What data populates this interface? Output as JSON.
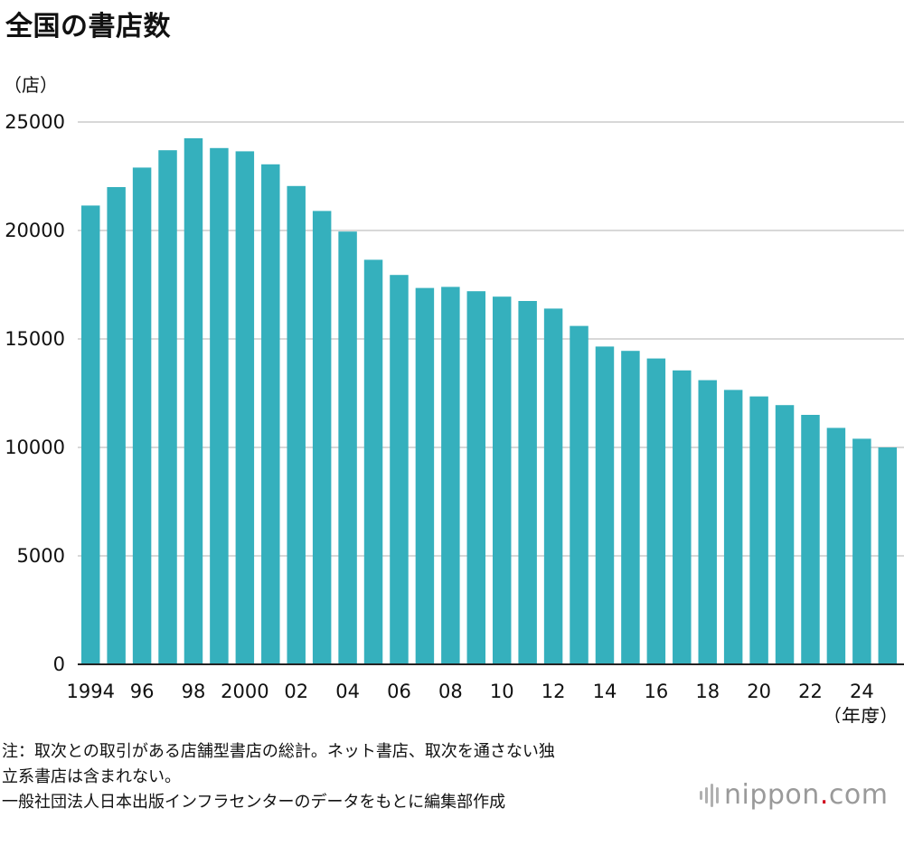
{
  "title": "全国の書店数",
  "unit_label": "（店）",
  "x_unit_label": "（年度）",
  "note_line1": "注：取次との取引がある店舗型書店の総計。ネット書店、取次を通さない独",
  "note_line2": "立系書店は含まれない。",
  "source": "一般社団法人日本出版インフラセンターのデータをもとに編集部作成",
  "logo": {
    "text_main": "nippon",
    "dot": ".",
    "text_tail": "com"
  },
  "colors": {
    "bar": "#35b0bd",
    "grid": "#cccccc",
    "axis": "#222222",
    "logo_dot": "#d0021b"
  },
  "chart_data": {
    "type": "bar",
    "x": [
      1994,
      1995,
      1996,
      1997,
      1998,
      1999,
      2000,
      2001,
      2002,
      2003,
      2004,
      2005,
      2006,
      2007,
      2008,
      2009,
      2010,
      2011,
      2012,
      2013,
      2014,
      2015,
      2016,
      2017,
      2018,
      2019,
      2020,
      2021,
      2022,
      2023,
      2024,
      2025
    ],
    "values": [
      21150,
      22000,
      22900,
      23700,
      24250,
      23800,
      23650,
      23050,
      22050,
      20900,
      19950,
      18650,
      17950,
      17350,
      17400,
      17200,
      16950,
      16750,
      16400,
      15600,
      14650,
      14450,
      14100,
      13550,
      13100,
      12650,
      12350,
      11950,
      11500,
      10900,
      10400,
      10000
    ],
    "x_tick_labels": [
      {
        "x": 1994,
        "label": "1994"
      },
      {
        "x": 1996,
        "label": "96"
      },
      {
        "x": 1998,
        "label": "98"
      },
      {
        "x": 2000,
        "label": "2000"
      },
      {
        "x": 2002,
        "label": "02"
      },
      {
        "x": 2004,
        "label": "04"
      },
      {
        "x": 2006,
        "label": "06"
      },
      {
        "x": 2008,
        "label": "08"
      },
      {
        "x": 2010,
        "label": "10"
      },
      {
        "x": 2012,
        "label": "12"
      },
      {
        "x": 2014,
        "label": "14"
      },
      {
        "x": 2016,
        "label": "16"
      },
      {
        "x": 2018,
        "label": "18"
      },
      {
        "x": 2020,
        "label": "20"
      },
      {
        "x": 2022,
        "label": "22"
      },
      {
        "x": 2024,
        "label": "24"
      }
    ],
    "y_ticks": [
      0,
      5000,
      10000,
      15000,
      20000,
      25000
    ],
    "ylim": [
      0,
      25000
    ],
    "grid": true
  }
}
